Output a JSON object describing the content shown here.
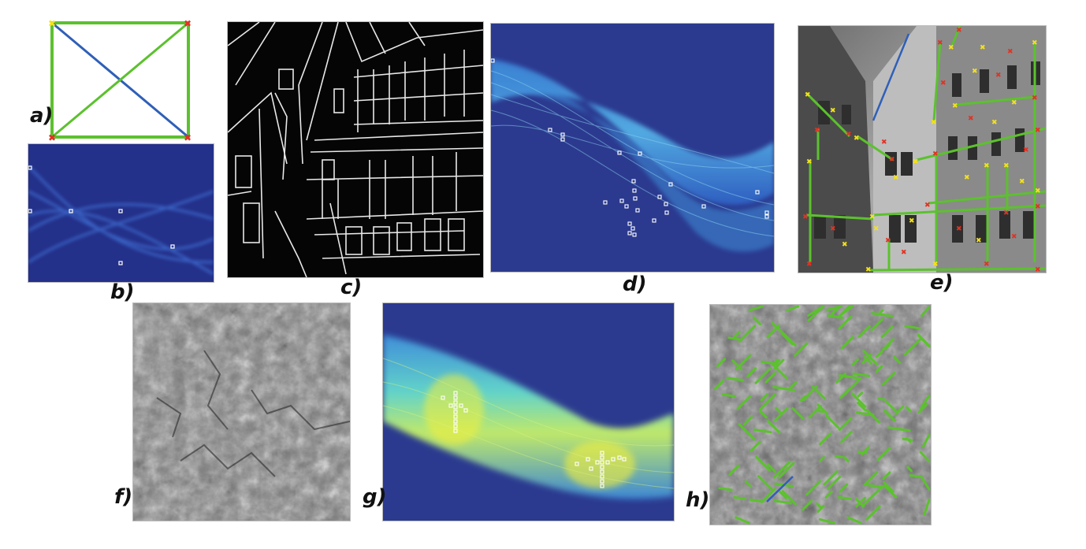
{
  "figure": {
    "panels": [
      {
        "id": "a",
        "label": "a)",
        "content": "rectangle-with-diagonals"
      },
      {
        "id": "b",
        "label": "b)",
        "content": "hough-accumulator-small"
      },
      {
        "id": "c",
        "label": "c)",
        "content": "canny-edge-map-building"
      },
      {
        "id": "d",
        "label": "d)",
        "content": "hough-accumulator-building"
      },
      {
        "id": "e",
        "label": "e)",
        "content": "detected-lines-building"
      },
      {
        "id": "f",
        "label": "f)",
        "content": "terrain-image"
      },
      {
        "id": "g",
        "label": "g)",
        "content": "hough-accumulator-terrain"
      },
      {
        "id": "h",
        "label": "h)",
        "content": "detected-lines-terrain"
      }
    ],
    "colors": {
      "accumulator_bg": "#2b3a8f",
      "accumulator_band": "#3d8ad8",
      "accumulator_peak": "#f3f03a",
      "line_green": "#5cc12e",
      "line_blue": "#2f5fb8",
      "marker_yellow": "#f3e21b",
      "marker_red": "#e03325",
      "edge_white": "#e8e8e8",
      "peak_marker": "#ffffff"
    }
  }
}
